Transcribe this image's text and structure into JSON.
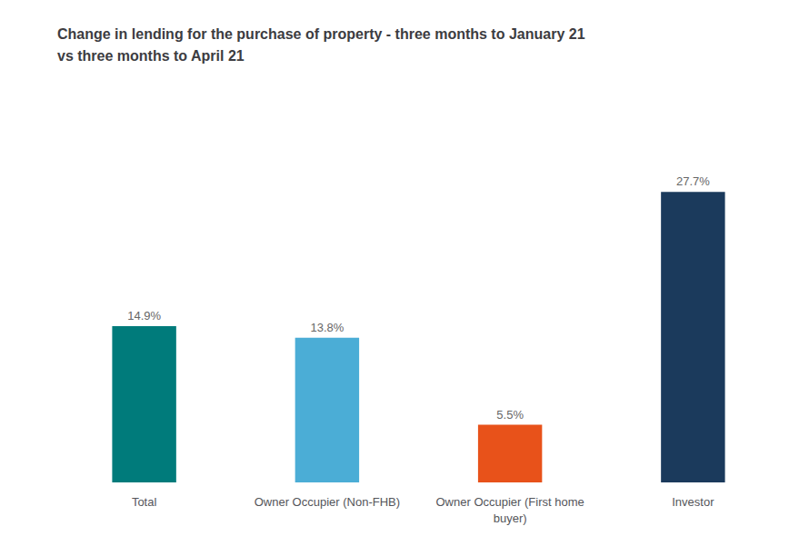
{
  "chart_data": {
    "type": "bar",
    "title": "Change in lending for the purchase of property - three months to January 21\nvs three months to April 21",
    "categories": [
      "Total",
      "Owner Occupier (Non-FHB)",
      "Owner Occupier (First home\nbuyer)",
      "Investor"
    ],
    "values": [
      14.9,
      13.8,
      5.5,
      27.7
    ],
    "value_labels": [
      "14.9%",
      "13.8%",
      "5.5%",
      "27.7%"
    ],
    "data_labels": true,
    "colors": [
      "#007b7b",
      "#4badd6",
      "#e8521a",
      "#1b3a5c"
    ],
    "ylim": [
      0,
      33
    ],
    "grid": false,
    "tick_labels": "x"
  }
}
